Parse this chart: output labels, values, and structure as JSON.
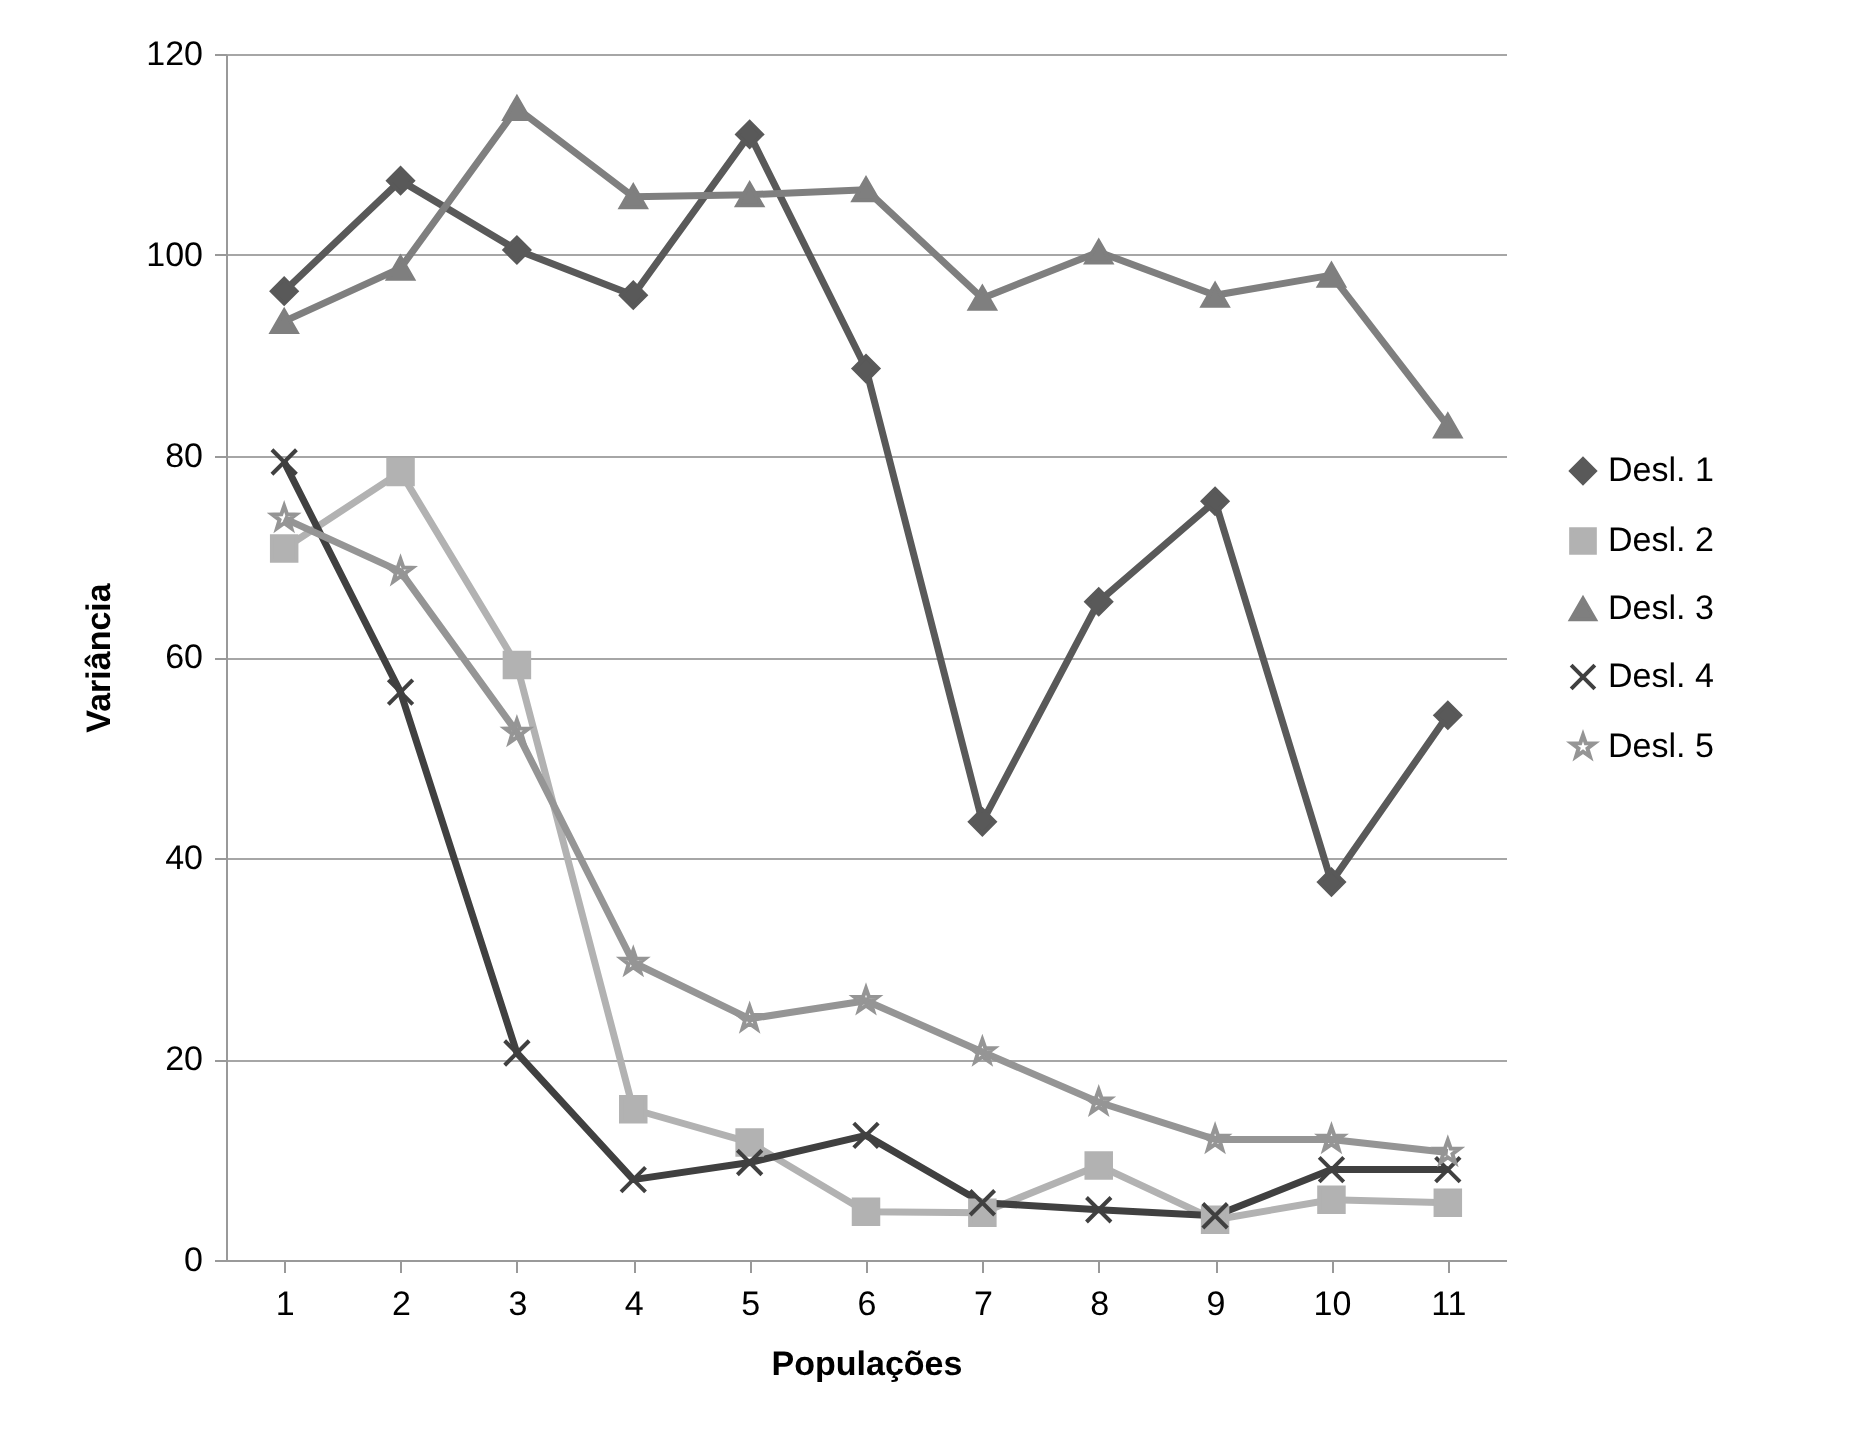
{
  "chart_data": {
    "type": "line",
    "xlabel": "Populações",
    "ylabel": "Variância",
    "categories": [
      "1",
      "2",
      "3",
      "4",
      "5",
      "6",
      "7",
      "8",
      "9",
      "10",
      "11"
    ],
    "series": [
      {
        "name": "Desl. 1",
        "color": "#595959",
        "marker": "diamond",
        "values": [
          96.4,
          107.4,
          100.5,
          96,
          112,
          88.7,
          43.6,
          65.5,
          75.5,
          37.6,
          54.2
        ]
      },
      {
        "name": "Desl. 2",
        "color": "#b2b2b2",
        "marker": "square",
        "values": [
          70.8,
          78.4,
          59.2,
          15,
          11.7,
          4.8,
          4.7,
          9.4,
          4,
          6,
          5.7
        ]
      },
      {
        "name": "Desl. 3",
        "color": "#7f7f7f",
        "marker": "triangle",
        "values": [
          93.4,
          98.7,
          114.6,
          105.8,
          106,
          106.5,
          95.7,
          100.3,
          96,
          98,
          83
        ]
      },
      {
        "name": "Desl. 4",
        "color": "#404040",
        "marker": "cross",
        "values": [
          79.4,
          56.5,
          20.6,
          8,
          9.7,
          12.4,
          5.7,
          5,
          4.4,
          9,
          9
        ]
      },
      {
        "name": "Desl. 5",
        "color": "#959595",
        "marker": "star",
        "values": [
          73.8,
          68.5,
          52.5,
          29.6,
          24,
          25.8,
          20.7,
          15.7,
          12,
          12,
          10.7
        ]
      }
    ],
    "ylim": [
      0,
      120
    ],
    "yticks": [
      0,
      20,
      40,
      60,
      80,
      100,
      120
    ],
    "grid": "y",
    "legend": "right"
  }
}
